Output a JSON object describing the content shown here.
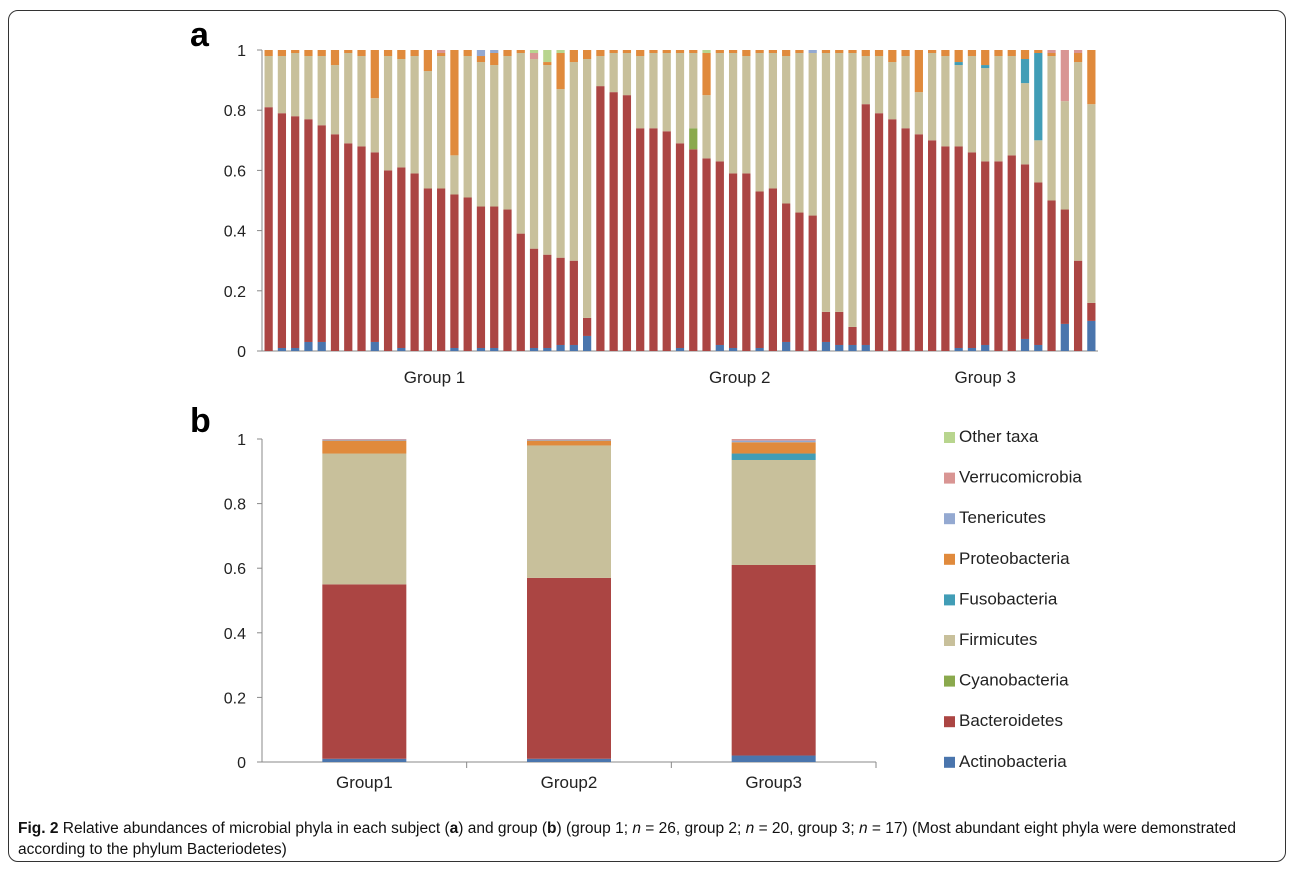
{
  "caption": {
    "label": "Fig. 2",
    "text_1": " Relative abundances of microbial phyla in each subject (",
    "a": "a",
    "text_2": ") and group (",
    "b": "b",
    "text_3": ") (group 1; ",
    "n1": "n",
    "text_4": " = 26, group 2; ",
    "n2": "n",
    "text_5": " = 20, group 3; ",
    "n3": "n",
    "text_6": " = 17) (Most abundant eight phyla were demonstrated according to the phylum Bacteriodetes)"
  },
  "colors": {
    "Actinobacteria": "#4a75ad",
    "Bacteroidetes": "#ab4543",
    "Cyanobacteria": "#8aa94d",
    "Firmicutes": "#c8c09b",
    "Fusobacteria": "#419db6",
    "Proteobacteria": "#e08a3c",
    "Tenericutes": "#94a9d1",
    "Verrucomicrobia": "#d99593",
    "Other taxa": "#b8d58e"
  },
  "chart_data": [
    {
      "panel": "a",
      "type": "bar",
      "stacked": true,
      "ylim": [
        0,
        1
      ],
      "yticks": [
        "0",
        "0.2",
        "0.4",
        "0.6",
        "0.8",
        "1"
      ],
      "group_labels": [
        "Group 1",
        "Group 2",
        "Group 3"
      ],
      "group_sizes": [
        26,
        20,
        17
      ],
      "boundaries": {
        "Actinobacteria": [
          0.0,
          0.01,
          0.01,
          0.03,
          0.03,
          0.0,
          0.0,
          0.0,
          0.03,
          0.0,
          0.01,
          0.0,
          0.0,
          0.0,
          0.01,
          0.0,
          0.01,
          0.01,
          0.0,
          0.0,
          0.01,
          0.01,
          0.02,
          0.02,
          0.05,
          0.0,
          0.0,
          0.0,
          0.0,
          0.0,
          0.0,
          0.01,
          0.0,
          0.0,
          0.02,
          0.01,
          0.0,
          0.01,
          0.0,
          0.03,
          0.0,
          0.0,
          0.03,
          0.02,
          0.02,
          0.02,
          0.0,
          0.0,
          0.0,
          0.0,
          0.0,
          0.0,
          0.01,
          0.01,
          0.02,
          0.0,
          0.0,
          0.04,
          0.02,
          0.0,
          0.09,
          0.0,
          0.1
        ],
        "Bacteroidetes": [
          0.81,
          0.79,
          0.78,
          0.77,
          0.75,
          0.72,
          0.69,
          0.68,
          0.66,
          0.6,
          0.61,
          0.59,
          0.54,
          0.54,
          0.52,
          0.51,
          0.48,
          0.48,
          0.47,
          0.39,
          0.34,
          0.32,
          0.31,
          0.3,
          0.11,
          0.88,
          0.86,
          0.85,
          0.74,
          0.74,
          0.73,
          0.69,
          0.67,
          0.64,
          0.63,
          0.59,
          0.59,
          0.53,
          0.54,
          0.49,
          0.46,
          0.45,
          0.13,
          0.13,
          0.08,
          0.82,
          0.79,
          0.77,
          0.74,
          0.72,
          0.7,
          0.68,
          0.68,
          0.66,
          0.63,
          0.63,
          0.65,
          0.62,
          0.56,
          0.5,
          0.47,
          0.3,
          0.16
        ],
        "Cyanobacteria": [
          0.81,
          0.79,
          0.78,
          0.77,
          0.75,
          0.72,
          0.69,
          0.68,
          0.66,
          0.6,
          0.61,
          0.59,
          0.54,
          0.54,
          0.52,
          0.51,
          0.48,
          0.48,
          0.47,
          0.39,
          0.34,
          0.32,
          0.31,
          0.3,
          0.11,
          0.88,
          0.86,
          0.85,
          0.74,
          0.74,
          0.73,
          0.69,
          0.74,
          0.64,
          0.63,
          0.59,
          0.59,
          0.53,
          0.54,
          0.49,
          0.46,
          0.45,
          0.13,
          0.13,
          0.08,
          0.82,
          0.79,
          0.77,
          0.74,
          0.72,
          0.7,
          0.68,
          0.68,
          0.66,
          0.63,
          0.63,
          0.65,
          0.62,
          0.56,
          0.5,
          0.47,
          0.3,
          0.16
        ],
        "Firmicutes": [
          0.98,
          0.98,
          0.99,
          0.98,
          0.98,
          0.95,
          0.99,
          0.98,
          0.84,
          0.98,
          0.97,
          0.98,
          0.93,
          0.98,
          0.65,
          0.98,
          0.96,
          0.95,
          0.98,
          0.99,
          0.97,
          0.95,
          0.87,
          0.96,
          0.97,
          0.98,
          0.99,
          0.99,
          0.98,
          0.99,
          0.99,
          0.99,
          0.99,
          0.85,
          0.99,
          0.99,
          0.98,
          0.99,
          0.99,
          0.98,
          0.99,
          0.99,
          0.99,
          0.99,
          0.99,
          0.98,
          0.98,
          0.96,
          0.98,
          0.86,
          0.99,
          0.98,
          0.95,
          0.98,
          0.94,
          0.98,
          0.98,
          0.89,
          0.7,
          0.98,
          0.83,
          0.96,
          0.82
        ],
        "Fusobacteria": [
          0.98,
          0.98,
          0.99,
          0.98,
          0.98,
          0.95,
          0.99,
          0.98,
          0.84,
          0.98,
          0.97,
          0.98,
          0.93,
          0.98,
          0.65,
          0.98,
          0.96,
          0.95,
          0.98,
          0.99,
          0.97,
          0.95,
          0.87,
          0.96,
          0.97,
          0.98,
          0.99,
          0.99,
          0.98,
          0.99,
          0.99,
          0.99,
          0.99,
          0.85,
          0.99,
          0.99,
          0.98,
          0.99,
          0.99,
          0.98,
          0.99,
          0.99,
          0.99,
          0.99,
          0.99,
          0.98,
          0.98,
          0.96,
          0.98,
          0.86,
          0.99,
          0.98,
          0.96,
          0.98,
          0.95,
          0.98,
          0.98,
          0.97,
          0.99,
          0.98,
          0.83,
          0.96,
          0.82
        ],
        "Proteobacteria": [
          1,
          1,
          1,
          1,
          1,
          1,
          1,
          1,
          1,
          1,
          1,
          1,
          1,
          0.99,
          1,
          1,
          0.98,
          0.99,
          1,
          1,
          0.97,
          0.96,
          0.99,
          1,
          1,
          1,
          1,
          1,
          1,
          1,
          1,
          1,
          1,
          0.99,
          1,
          1,
          1,
          1,
          1,
          1,
          1,
          0.99,
          1,
          1,
          1,
          1,
          1,
          1,
          1,
          1,
          1,
          1,
          1,
          1,
          1,
          1,
          1,
          1,
          1,
          0.99,
          0.83,
          0.99,
          1
        ],
        "Tenericutes": [
          1,
          1,
          1,
          1,
          1,
          1,
          1,
          1,
          1,
          1,
          1,
          1,
          1,
          0.99,
          1,
          1,
          1,
          1,
          1,
          1,
          0.97,
          0.96,
          0.99,
          1,
          1,
          1,
          1,
          1,
          1,
          1,
          1,
          1,
          1,
          0.99,
          1,
          1,
          1,
          1,
          1,
          1,
          1,
          1,
          1,
          1,
          1,
          1,
          1,
          1,
          1,
          1,
          1,
          1,
          1,
          1,
          1,
          1,
          1,
          1,
          1,
          0.99,
          0.83,
          0.99,
          1
        ],
        "Verrucomicrobia": [
          1,
          1,
          1,
          1,
          1,
          1,
          1,
          1,
          1,
          1,
          1,
          1,
          1,
          1,
          1,
          1,
          1,
          1,
          1,
          1,
          0.99,
          0.96,
          0.99,
          1,
          1,
          1,
          1,
          1,
          1,
          1,
          1,
          1,
          1,
          0.99,
          1,
          1,
          1,
          1,
          1,
          1,
          1,
          1,
          1,
          1,
          1,
          1,
          1,
          1,
          1,
          1,
          1,
          1,
          1,
          1,
          1,
          1,
          1,
          1,
          1,
          1,
          1,
          1,
          1
        ],
        "Other taxa": [
          1,
          1,
          1,
          1,
          1,
          1,
          1,
          1,
          1,
          1,
          1,
          1,
          1,
          1,
          1,
          1,
          1,
          1,
          1,
          1,
          1,
          1,
          1,
          1,
          1,
          1,
          1,
          1,
          1,
          1,
          1,
          1,
          1,
          1,
          1,
          1,
          1,
          1,
          1,
          1,
          1,
          1,
          1,
          1,
          1,
          1,
          1,
          1,
          1,
          1,
          1,
          1,
          1,
          1,
          1,
          1,
          1,
          1,
          1,
          1,
          1,
          1,
          1
        ]
      }
    },
    {
      "panel": "b",
      "type": "bar",
      "stacked": true,
      "ylim": [
        0,
        1
      ],
      "yticks": [
        "0",
        "0.2",
        "0.4",
        "0.6",
        "0.8",
        "1"
      ],
      "categories": [
        "Group1",
        "Group2",
        "Group3"
      ],
      "series": [
        {
          "name": "Actinobacteria",
          "values": [
            0.01,
            0.01,
            0.02
          ]
        },
        {
          "name": "Bacteroidetes",
          "values": [
            0.54,
            0.56,
            0.59
          ]
        },
        {
          "name": "Cyanobacteria",
          "values": [
            0.0,
            0.0,
            0.0
          ]
        },
        {
          "name": "Firmicutes",
          "values": [
            0.405,
            0.41,
            0.325
          ]
        },
        {
          "name": "Fusobacteria",
          "values": [
            0.0,
            0.0,
            0.02
          ]
        },
        {
          "name": "Proteobacteria",
          "values": [
            0.04,
            0.015,
            0.035
          ]
        },
        {
          "name": "Tenericutes",
          "values": [
            0.003,
            0.003,
            0.005
          ]
        },
        {
          "name": "Verrucomicrobia",
          "values": [
            0.002,
            0.002,
            0.005
          ]
        },
        {
          "name": "Other taxa",
          "values": [
            0.0,
            0.0,
            0.0
          ]
        }
      ],
      "legend": [
        "Other taxa",
        "Verrucomicrobia",
        "Tenericutes",
        "Proteobacteria",
        "Fusobacteria",
        "Firmicutes",
        "Cyanobacteria",
        "Bacteroidetes",
        "Actinobacteria"
      ],
      "legend_position": "right"
    }
  ]
}
